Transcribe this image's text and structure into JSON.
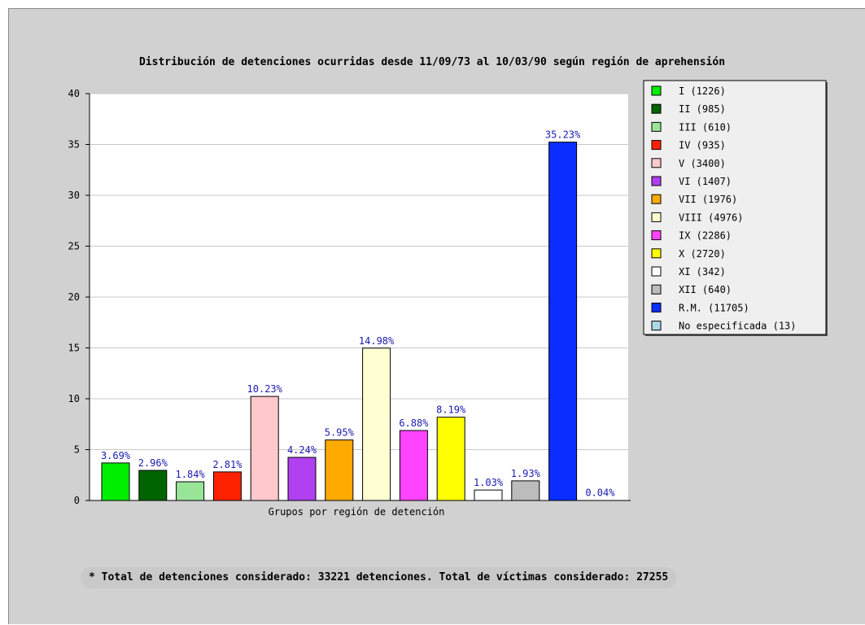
{
  "chart_data": {
    "type": "bar",
    "title": "Distribución de detenciones ocurridas desde 11/09/73 al 10/03/90 según región de aprehensión",
    "xlabel": "Grupos por región de detención",
    "ylabel": "",
    "ylim": [
      0,
      40
    ],
    "yticks": [
      "0",
      "5",
      "10",
      "15",
      "20",
      "25",
      "30",
      "35",
      "40"
    ],
    "grid": "horizontal",
    "legend_position": "right",
    "categories": [
      "I",
      "II",
      "III",
      "IV",
      "V",
      "VI",
      "VII",
      "VIII",
      "IX",
      "X",
      "XI",
      "XII",
      "R.M.",
      "No especificada"
    ],
    "values": [
      3.69,
      2.96,
      1.84,
      2.81,
      10.23,
      4.24,
      5.95,
      14.98,
      6.88,
      8.19,
      1.03,
      1.93,
      35.23,
      0.04
    ],
    "data_labels": [
      "3.69%",
      "2.96%",
      "1.84%",
      "2.81%",
      "10.23%",
      "4.24%",
      "5.95%",
      "14.98%",
      "6.88%",
      "8.19%",
      "1.03%",
      "1.93%",
      "35.23%",
      "0.04%"
    ],
    "legend": [
      "I (1226)",
      "II (985)",
      "III (610)",
      "IV (935)",
      "V (3400)",
      "VI (1407)",
      "VII (1976)",
      "VIII (4976)",
      "IX (2286)",
      "X (2720)",
      "XI (342)",
      "XII (640)",
      "R.M. (11705)",
      "No especificada (13)"
    ],
    "colors": [
      "#00ee00",
      "#006400",
      "#98e598",
      "#ff2200",
      "#ffc8cc",
      "#b040f0",
      "#ffaa00",
      "#ffffd2",
      "#ff44ff",
      "#ffff00",
      "#ffffff",
      "#bcbcbc",
      "#0a2eff",
      "#add8e6"
    ]
  },
  "footnote": "* Total de detenciones considerado: 33221 detenciones. Total de víctimas considerado: 27255"
}
